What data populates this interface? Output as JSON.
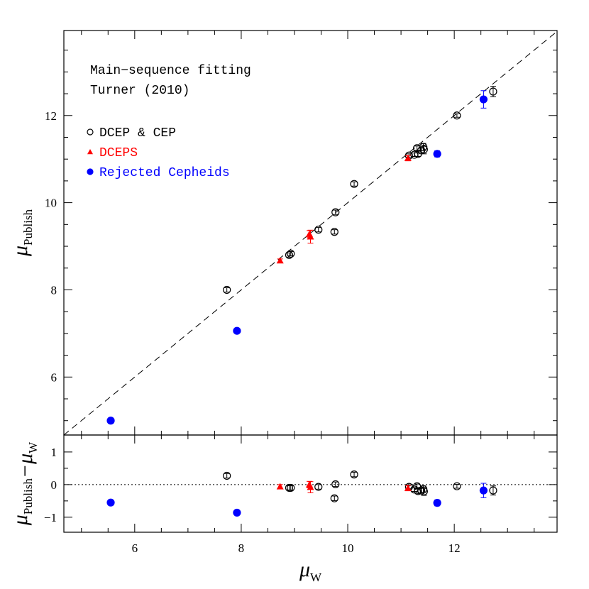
{
  "chart_data": [
    {
      "type": "scatter",
      "annotations": [
        "Main−sequence fitting",
        "Turner (2010)"
      ],
      "ylabel": {
        "text": "μ",
        "sub": "Publish"
      },
      "xlim": [
        4.67,
        13.93
      ],
      "ylim": [
        4.67,
        13.95
      ],
      "xticks": [
        6,
        8,
        10,
        12
      ],
      "yticks": [
        6,
        8,
        10,
        12
      ],
      "xminorticks": [
        5,
        5.5,
        6.5,
        7,
        7.5,
        8.5,
        9,
        9.5,
        10.5,
        11,
        11.5,
        12.5,
        13,
        13.5
      ],
      "yminorticks": [
        5,
        5.5,
        6.5,
        7,
        7.5,
        8.5,
        9,
        9.5,
        10.5,
        11,
        11.5,
        12.5,
        13,
        13.5
      ],
      "diagonal": true,
      "legend": "upper left",
      "series": [
        {
          "name": "DCEP & CEP",
          "color": "#000000",
          "marker": "open-circle",
          "x": [
            7.73,
            8.9,
            8.93,
            9.45,
            9.77,
            9.75,
            10.12,
            11.15,
            11.25,
            11.3,
            11.32,
            11.38,
            11.42,
            11.43,
            12.05,
            12.73
          ],
          "values": [
            8.0,
            8.8,
            8.83,
            9.38,
            9.78,
            9.33,
            10.43,
            11.08,
            11.1,
            11.25,
            11.12,
            11.2,
            11.28,
            11.22,
            12.0,
            12.55
          ],
          "errors": [
            0.05,
            0.05,
            0.05,
            0.05,
            0.05,
            0.05,
            0.05,
            0.04,
            0.04,
            0.05,
            0.06,
            0.05,
            0.08,
            0.1,
            0.04,
            0.12
          ]
        },
        {
          "name": "DCEPS",
          "color": "#ff0000",
          "marker": "triangle",
          "x": [
            8.73,
            9.28,
            9.3,
            11.13
          ],
          "values": [
            8.67,
            9.28,
            9.22,
            11.02
          ],
          "errors": [
            0.04,
            0.08,
            0.15,
            0.06
          ]
        },
        {
          "name": "Rejected Cepheids",
          "color": "#0000ff",
          "marker": "filled-circle",
          "x": [
            5.55,
            7.92,
            11.68,
            12.55
          ],
          "values": [
            5.0,
            7.06,
            11.12,
            12.37
          ],
          "errors": [
            0.06,
            0.05,
            0.07,
            0.2
          ]
        }
      ]
    },
    {
      "type": "scatter",
      "xlabel": {
        "text": "μ",
        "sub": "W"
      },
      "ylabel": [
        {
          "text": "μ",
          "sub": "Publish"
        },
        {
          "text": "−μ",
          "sub": "W"
        }
      ],
      "xlim": [
        4.67,
        13.93
      ],
      "ylim": [
        -1.46,
        1.52
      ],
      "xticks": [
        6,
        8,
        10,
        12
      ],
      "yticks": [
        1,
        0,
        {
          "value": -1,
          "label": "−1"
        }
      ],
      "xminorticks": [
        5,
        5.5,
        6.5,
        7,
        7.5,
        8.5,
        9,
        9.5,
        10.5,
        11,
        11.5,
        12.5,
        13,
        13.5
      ],
      "yminorticks": [
        -0.5,
        0.5
      ],
      "zero_line": true,
      "series": [
        {
          "color": "#000000",
          "marker": "open-circle",
          "x": [
            7.73,
            8.9,
            8.93,
            9.45,
            9.77,
            9.75,
            10.12,
            11.15,
            11.25,
            11.3,
            11.32,
            11.38,
            11.42,
            11.43,
            12.05,
            12.73
          ],
          "values": [
            0.27,
            -0.1,
            -0.1,
            -0.07,
            0.01,
            -0.42,
            0.31,
            -0.07,
            -0.15,
            -0.05,
            -0.2,
            -0.18,
            -0.14,
            -0.21,
            -0.05,
            -0.18
          ],
          "errors": [
            0.07,
            0.07,
            0.07,
            0.07,
            0.07,
            0.07,
            0.07,
            0.06,
            0.06,
            0.07,
            0.08,
            0.07,
            0.1,
            0.12,
            0.06,
            0.14
          ]
        },
        {
          "color": "#ff0000",
          "marker": "triangle",
          "x": [
            8.73,
            9.28,
            9.3,
            11.13
          ],
          "values": [
            -0.06,
            0.0,
            -0.08,
            -0.11
          ],
          "errors": [
            0.06,
            0.1,
            0.17,
            0.08
          ]
        },
        {
          "color": "#0000ff",
          "marker": "filled-circle",
          "x": [
            5.55,
            7.92,
            11.68,
            12.55
          ],
          "values": [
            -0.55,
            -0.86,
            -0.56,
            -0.18
          ],
          "errors": [
            0.08,
            0.07,
            0.09,
            0.22
          ]
        }
      ]
    }
  ]
}
